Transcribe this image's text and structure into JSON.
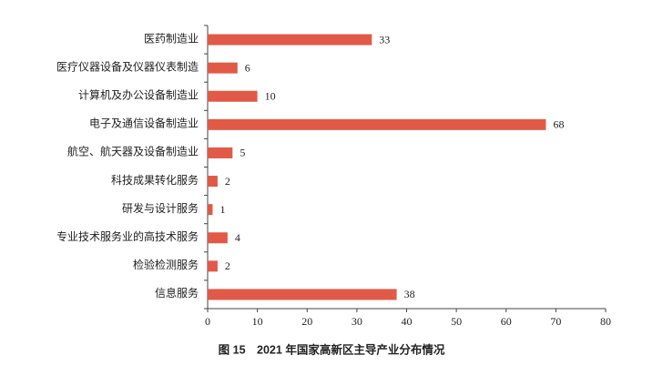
{
  "chart_data": {
    "type": "bar",
    "orientation": "horizontal",
    "title": "图 15　2021 年国家高新区主导产业分布情况",
    "categories": [
      "医药制造业",
      "医疗仪器设备及仪器仪表制造",
      "计算机及办公设备制造业",
      "电子及通信设备制造业",
      "航空、航天器及设备制造业",
      "科技成果转化服务",
      "研发与设计服务",
      "专业技术服务业的高技术服务",
      "检验检测服务",
      "信息服务"
    ],
    "values": [
      33,
      6,
      10,
      68,
      5,
      2,
      1,
      4,
      2,
      38
    ],
    "color": "#e05a47",
    "xlim": [
      0,
      80
    ],
    "xticks": [
      0,
      10,
      20,
      30,
      40,
      50,
      60,
      70,
      80
    ],
    "grid": false
  }
}
